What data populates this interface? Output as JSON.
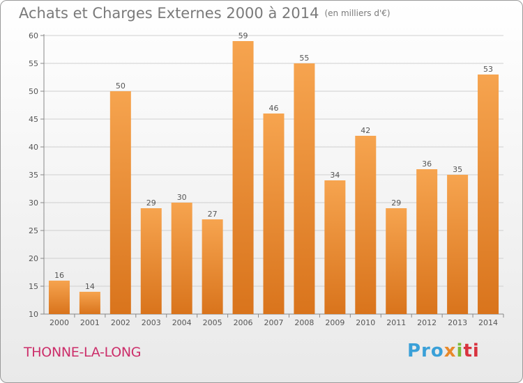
{
  "chart_data": {
    "type": "bar",
    "title": "Achats et Charges Externes 2000 à 2014",
    "subtitle": "(en milliers d'€)",
    "categories": [
      "2000",
      "2001",
      "2002",
      "2003",
      "2004",
      "2005",
      "2006",
      "2007",
      "2008",
      "2009",
      "2010",
      "2011",
      "2012",
      "2013",
      "2014"
    ],
    "values": [
      16,
      14,
      50,
      29,
      30,
      27,
      59,
      46,
      55,
      34,
      42,
      29,
      36,
      35,
      53
    ],
    "ylim": [
      10,
      60
    ],
    "yticks": [
      10,
      15,
      20,
      25,
      30,
      35,
      40,
      45,
      50,
      55,
      60
    ],
    "grid": true,
    "xlabel": "",
    "ylabel": ""
  },
  "footer": {
    "location": "THONNE-LA-LONG",
    "logo_parts": [
      "Pro",
      "x",
      "i",
      "ti"
    ]
  },
  "colors": {
    "bar_top": "#f6a44f",
    "bar_bottom": "#d9741c",
    "town_text": "#cc2e6a"
  }
}
